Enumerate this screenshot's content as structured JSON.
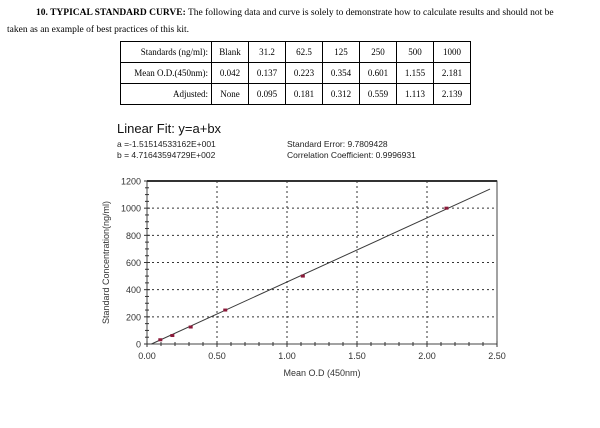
{
  "heading": {
    "number_title": "10. TYPICAL STANDARD CURVE:",
    "line1_rest": " The following data and curve is solely to demonstrate how to calculate results and should not be",
    "line2": "taken as an example of best practices of this kit."
  },
  "table": {
    "rows": [
      {
        "label": "Standards (ng/ml):",
        "cells": [
          "Blank",
          "31.2",
          "62.5",
          "125",
          "250",
          "500",
          "1000"
        ]
      },
      {
        "label": "Mean O.D.(450nm):",
        "cells": [
          "0.042",
          "0.137",
          "0.223",
          "0.354",
          "0.601",
          "1.155",
          "2.181"
        ]
      },
      {
        "label": "Adjusted:",
        "cells": [
          "None",
          "0.095",
          "0.181",
          "0.312",
          "0.559",
          "1.113",
          "2.139"
        ]
      }
    ]
  },
  "fit": {
    "title": "Linear Fit: y=a+bx",
    "a": "a =-1.51514533162E+001",
    "b": "b = 4.71643594729E+002",
    "std_error": "Standard Error: 9.7809428",
    "corr": "Correlation Coefficient: 0.9996931"
  },
  "chart_data": {
    "type": "scatter",
    "title": "Linear Fit: y=a+bx",
    "xlabel": "Mean O.D (450nm)",
    "ylabel": "Standard Concentration(ng/ml)",
    "xlim": [
      0,
      2.5
    ],
    "ylim": [
      0,
      1200
    ],
    "x_ticks": [
      "0.00",
      "0.50",
      "1.00",
      "1.50",
      "2.00",
      "2.50"
    ],
    "y_ticks": [
      "0",
      "200",
      "400",
      "600",
      "800",
      "1000",
      "1200"
    ],
    "grid": true,
    "series": [
      {
        "name": "Standards",
        "x": [
          0.095,
          0.181,
          0.312,
          0.559,
          1.113,
          2.139
        ],
        "y": [
          31.2,
          62.5,
          125,
          250,
          500,
          1000
        ]
      }
    ],
    "fit_line": {
      "a": -15.1514533162,
      "b": 471.643594729,
      "x_range": [
        0.03,
        2.45
      ]
    },
    "colors": {
      "points": "#8b1a3a",
      "line": "#3a3a3a",
      "grid": "#333333"
    }
  }
}
